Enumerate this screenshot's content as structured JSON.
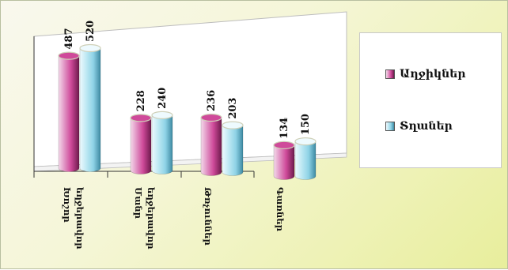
{
  "chart_data": {
    "type": "bar",
    "categories": [
      {
        "label": "Խոշոր եղջերավոր"
      },
      {
        "label": "Մանր եղջերավոր"
      },
      {
        "label": "Թռչուններ"
      },
      {
        "label": "Գառներ"
      }
    ],
    "series": [
      {
        "name": "Աղջիկներ",
        "values": [
          487,
          228,
          236,
          134
        ]
      },
      {
        "name": "Տղաներ",
        "values": [
          520,
          240,
          203,
          150
        ]
      }
    ],
    "ylim": [
      0,
      520
    ],
    "grid": false,
    "legend_position": "right",
    "colors": {
      "series1_light": "#f4d9ea",
      "series1_mid": "#cf4a9a",
      "series1_dark": "#6e1a4c",
      "series1_accent": "#c2185b",
      "series2_light": "#eefafe",
      "series2_mid": "#8fd3e6",
      "series2_dark": "#3d8aa3",
      "cap_rim": "#cfd0b8",
      "axis": "#333333"
    }
  }
}
